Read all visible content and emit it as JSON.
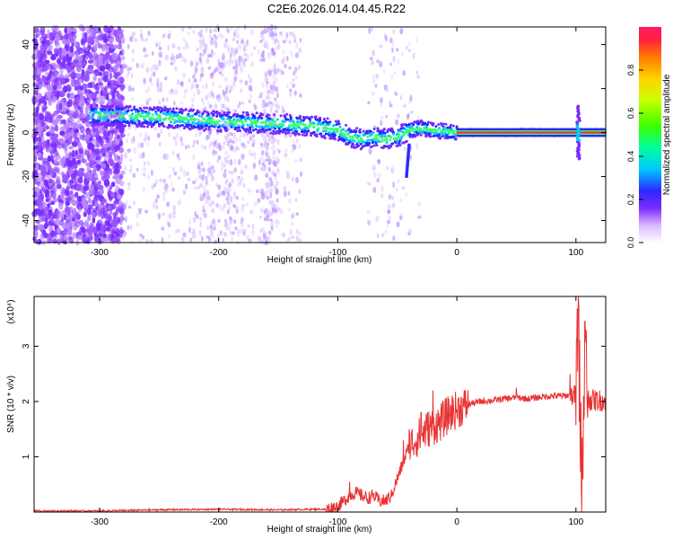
{
  "title": "C2E6.2026.014.04.45.R22",
  "chart_data": [
    {
      "type": "heatmap",
      "xlabel": "Height of straight line (km)",
      "ylabel": "Frequency (Hz)",
      "xlim": [
        -355,
        125
      ],
      "ylim": [
        -50,
        48
      ],
      "xticks": [
        -300,
        -200,
        -100,
        0,
        100
      ],
      "yticks": [
        -40,
        -20,
        0,
        20,
        40
      ],
      "colorbar": {
        "label": "Normalized spectral amplitude",
        "range": [
          0,
          1
        ],
        "ticks": [
          "0.0",
          "0.2",
          "0.4",
          "0.6",
          "0.8"
        ]
      },
      "ridge": {
        "x": [
          -305,
          -250,
          -200,
          -150,
          -120,
          -100,
          -90,
          -80,
          -70,
          -60,
          -50,
          -40,
          -30,
          -20,
          -10,
          0,
          125
        ],
        "y": [
          8,
          7,
          5,
          4,
          3,
          1,
          -2,
          -3,
          -2,
          -3,
          -2,
          1,
          2,
          1,
          0.5,
          0,
          0
        ]
      },
      "noise_region": {
        "x": [
          -355,
          -280
        ],
        "y": [
          -50,
          48
        ]
      },
      "spike_at_x": 102
    },
    {
      "type": "line",
      "xlabel": "Height of straight line (km)",
      "ylabel": "SNR (10 * v/v)",
      "yscale_label": "(x10⁴)",
      "xlim": [
        -355,
        125
      ],
      "ylim": [
        0,
        3.9
      ],
      "xticks": [
        -300,
        -200,
        -100,
        0,
        100
      ],
      "yticks": [
        1,
        2,
        3
      ],
      "color": "#e83232",
      "series": [
        {
          "x": [
            -355,
            -300,
            -250,
            -200,
            -150,
            -120,
            -110,
            -100,
            -95,
            -90,
            -85,
            -80,
            -75,
            -70,
            -65,
            -60,
            -55,
            -50,
            -45,
            -40,
            -35,
            -30,
            -25,
            -20,
            -15,
            -10,
            -5,
            0,
            10,
            20,
            30,
            40,
            50,
            60,
            70,
            80,
            90,
            95,
            100,
            102,
            105,
            107,
            110,
            115,
            125
          ],
          "y": [
            0.02,
            0.02,
            0.04,
            0.05,
            0.04,
            0.05,
            0.05,
            0.1,
            0.2,
            0.3,
            0.35,
            0.3,
            0.25,
            0.3,
            0.2,
            0.2,
            0.3,
            0.6,
            0.9,
            1.2,
            1.3,
            1.4,
            1.5,
            1.55,
            1.6,
            1.7,
            1.8,
            1.85,
            1.95,
            2.0,
            2.02,
            2.05,
            2.07,
            2.05,
            2.08,
            2.1,
            2.1,
            2.12,
            2.1,
            3.5,
            0.2,
            2.9,
            2.05,
            2.02,
            2.02
          ],
          "spikes": [
            {
              "x": -90,
              "y": 0.55
            },
            {
              "x": -45,
              "y": 1.3
            },
            {
              "x": -40,
              "y": 1.5
            },
            {
              "x": -30,
              "y": 1.8
            },
            {
              "x": -20,
              "y": 2.2
            },
            {
              "x": -10,
              "y": 2.05
            },
            {
              "x": 50,
              "y": 2.25
            },
            {
              "x": 95,
              "y": 2.5
            },
            {
              "x": 100,
              "y": 2.8
            },
            {
              "x": 104,
              "y": 3.9
            },
            {
              "x": 106,
              "y": 0.1
            },
            {
              "x": 108,
              "y": 3.3
            }
          ]
        }
      ]
    }
  ]
}
